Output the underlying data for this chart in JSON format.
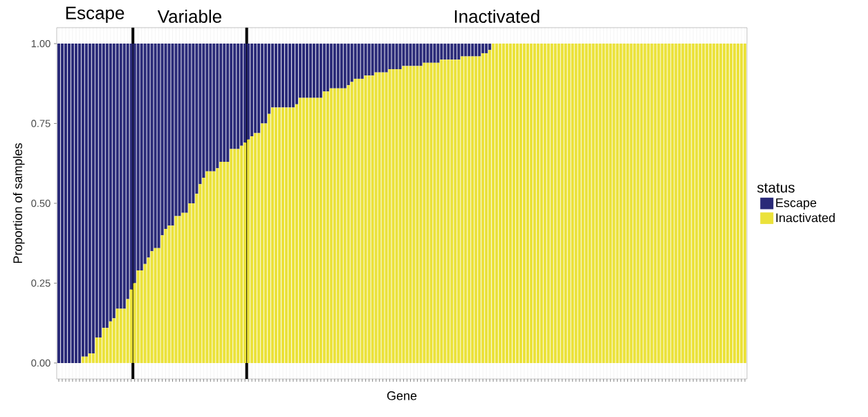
{
  "chart_data": {
    "type": "bar",
    "stacked": true,
    "xlabel": "Gene",
    "ylabel": "Proportion of samples",
    "legend_title": "status",
    "legend": "right",
    "grid": "x",
    "annotations": [
      "Escape",
      "Variable",
      "Inactivated"
    ],
    "categories": [
      null,
      null,
      null,
      null,
      null,
      null,
      null,
      null,
      null,
      null,
      null,
      null,
      null,
      null,
      null,
      null,
      null,
      null,
      null,
      null,
      null,
      null,
      null,
      null,
      null,
      null,
      null,
      null,
      null,
      null,
      null,
      null,
      null,
      null,
      null,
      null,
      null,
      null,
      null,
      null,
      null,
      null,
      null,
      null,
      null,
      null,
      null,
      null,
      null,
      null,
      null,
      null,
      null,
      null,
      null,
      null,
      null,
      null,
      null,
      null,
      null,
      null,
      null,
      null,
      null,
      null,
      null,
      null,
      null,
      null,
      null,
      null,
      null,
      null,
      null,
      null,
      null,
      null,
      null,
      null,
      null,
      null,
      null,
      null,
      null,
      null,
      null,
      null,
      null,
      null,
      null,
      null,
      null,
      null,
      null,
      null,
      null,
      null,
      null,
      null,
      null,
      null,
      null,
      null,
      null,
      null,
      null,
      null,
      null,
      null,
      null,
      null,
      null,
      null,
      null,
      null,
      null,
      null,
      null,
      null,
      null,
      null,
      null,
      null,
      null,
      null,
      null,
      null,
      null,
      null,
      null,
      null,
      null,
      null,
      null,
      null,
      null,
      null,
      null,
      null,
      null,
      null,
      null,
      null,
      null,
      null,
      null,
      null,
      null,
      null,
      null,
      null,
      null,
      null,
      null,
      null,
      null,
      null,
      null,
      null,
      null,
      null,
      null,
      null,
      null,
      null,
      null,
      null,
      null,
      null,
      null,
      null,
      null,
      null,
      null,
      null,
      null,
      null,
      null,
      null,
      null,
      null,
      null,
      null,
      null,
      null,
      null,
      null,
      null,
      null,
      null,
      null,
      null,
      null,
      null,
      null,
      null,
      null,
      null,
      null
    ],
    "series": [
      {
        "name": "Inactivated",
        "color": "#ebe23a",
        "values": [
          0,
          0,
          0,
          0,
          0,
          0,
          0,
          0.02,
          0.02,
          0.03,
          0.03,
          0.08,
          0.08,
          0.11,
          0.11,
          0.13,
          0.14,
          0.17,
          0.17,
          0.17,
          0.2,
          0.23,
          0.25,
          0.29,
          0.29,
          0.31,
          0.33,
          0.35,
          0.36,
          0.36,
          0.4,
          0.42,
          0.43,
          0.43,
          0.46,
          0.46,
          0.47,
          0.47,
          0.5,
          0.5,
          0.53,
          0.56,
          0.58,
          0.6,
          0.6,
          0.6,
          0.61,
          0.63,
          0.63,
          0.63,
          0.67,
          0.67,
          0.67,
          0.68,
          0.69,
          0.7,
          0.71,
          0.72,
          0.72,
          0.75,
          0.75,
          0.78,
          0.8,
          0.8,
          0.8,
          0.8,
          0.8,
          0.8,
          0.8,
          0.81,
          0.83,
          0.83,
          0.83,
          0.83,
          0.83,
          0.83,
          0.83,
          0.85,
          0.85,
          0.86,
          0.86,
          0.86,
          0.86,
          0.86,
          0.87,
          0.88,
          0.89,
          0.89,
          0.89,
          0.9,
          0.9,
          0.9,
          0.91,
          0.91,
          0.91,
          0.91,
          0.92,
          0.92,
          0.92,
          0.92,
          0.93,
          0.93,
          0.93,
          0.93,
          0.93,
          0.93,
          0.94,
          0.94,
          0.94,
          0.94,
          0.94,
          0.95,
          0.95,
          0.95,
          0.95,
          0.95,
          0.95,
          0.96,
          0.96,
          0.96,
          0.96,
          0.96,
          0.96,
          0.97,
          0.97,
          0.98,
          1,
          1,
          1,
          1,
          1,
          1,
          1,
          1,
          1,
          1,
          1,
          1,
          1,
          1,
          1,
          1,
          1,
          1,
          1,
          1,
          1,
          1,
          1,
          1,
          1,
          1,
          1,
          1,
          1,
          1,
          1,
          1,
          1,
          1,
          1,
          1,
          1,
          1,
          1,
          1,
          1,
          1,
          1,
          1,
          1,
          1,
          1,
          1,
          1,
          1,
          1,
          1,
          1,
          1,
          1,
          1,
          1,
          1,
          1,
          1,
          1,
          1,
          1,
          1,
          1,
          1,
          1,
          1,
          1,
          1,
          1,
          1,
          1,
          1
        ]
      },
      {
        "name": "Escape",
        "color": "#2a2a78",
        "values": [
          1,
          1,
          1,
          1,
          1,
          1,
          1,
          0.98,
          0.98,
          0.97,
          0.97,
          0.92,
          0.92,
          0.89,
          0.89,
          0.87,
          0.86,
          0.83,
          0.83,
          0.83,
          0.8,
          0.77,
          0.75,
          0.71,
          0.71,
          0.69,
          0.67,
          0.65,
          0.64,
          0.64,
          0.6,
          0.58,
          0.57,
          0.57,
          0.54,
          0.54,
          0.53,
          0.53,
          0.5,
          0.5,
          0.47,
          0.44,
          0.42,
          0.4,
          0.4,
          0.4,
          0.39,
          0.37,
          0.37,
          0.37,
          0.33,
          0.33,
          0.33,
          0.32,
          0.31,
          0.3,
          0.29,
          0.28,
          0.28,
          0.25,
          0.25,
          0.22,
          0.2,
          0.2,
          0.2,
          0.2,
          0.2,
          0.2,
          0.2,
          0.19,
          0.17,
          0.17,
          0.17,
          0.17,
          0.17,
          0.17,
          0.17,
          0.15,
          0.15,
          0.14,
          0.14,
          0.14,
          0.14,
          0.14,
          0.13,
          0.12,
          0.11,
          0.11,
          0.11,
          0.1,
          0.1,
          0.1,
          0.09,
          0.09,
          0.09,
          0.09,
          0.08,
          0.08,
          0.08,
          0.08,
          0.07,
          0.07,
          0.07,
          0.07,
          0.07,
          0.07,
          0.06,
          0.06,
          0.06,
          0.06,
          0.06,
          0.05,
          0.05,
          0.05,
          0.05,
          0.05,
          0.05,
          0.04,
          0.04,
          0.04,
          0.04,
          0.04,
          0.04,
          0.03,
          0.03,
          0.02,
          0,
          0,
          0,
          0,
          0,
          0,
          0,
          0,
          0,
          0,
          0,
          0,
          0,
          0,
          0,
          0,
          0,
          0,
          0,
          0,
          0,
          0,
          0,
          0,
          0,
          0,
          0,
          0,
          0,
          0,
          0,
          0,
          0,
          0,
          0,
          0,
          0,
          0,
          0,
          0,
          0,
          0,
          0,
          0,
          0,
          0,
          0,
          0,
          0,
          0,
          0,
          0,
          0,
          0,
          0,
          0,
          0,
          0,
          0,
          0,
          0,
          0,
          0,
          0,
          0,
          0,
          0,
          0,
          0,
          0,
          0,
          0,
          0,
          0
        ]
      }
    ],
    "ylim": [
      -0.05,
      1.05
    ],
    "yticks": [
      {
        "value": 0,
        "label": "0.00"
      },
      {
        "value": 0.25,
        "label": "0.25"
      },
      {
        "value": 0.5,
        "label": "0.50"
      },
      {
        "value": 0.75,
        "label": "0.75"
      },
      {
        "value": 1,
        "label": "1.00"
      }
    ]
  }
}
